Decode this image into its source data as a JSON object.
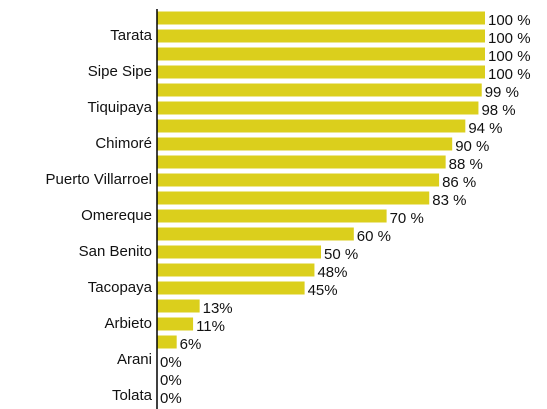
{
  "chart_data": {
    "type": "hbar",
    "categories": [
      null,
      "Tarata",
      null,
      "Sipe Sipe",
      null,
      "Tiquipaya",
      null,
      "Chimoré",
      null,
      "Puerto Villarroel",
      null,
      "Omereque",
      null,
      "San Benito",
      null,
      "Tacopaya",
      null,
      "Arbieto",
      null,
      "Arani",
      null,
      "Tolata"
    ],
    "values": [
      100,
      100,
      100,
      100,
      99,
      98,
      94,
      90,
      88,
      86,
      83,
      70,
      60,
      50,
      48,
      45,
      13,
      11,
      6,
      0,
      0,
      0
    ],
    "value_labels": [
      "100 %",
      "100 %",
      "100 %",
      "100 %",
      "99 %",
      "98 %",
      "94 %",
      "90 %",
      "88 %",
      "86 %",
      "83 %",
      "70 %",
      "60 %",
      "50 %",
      "48%",
      "45%",
      "13%",
      "11%",
      "6%",
      "0%",
      "0%",
      "0%"
    ],
    "color": "#dbcf1c",
    "xlim": [
      0,
      100
    ]
  }
}
